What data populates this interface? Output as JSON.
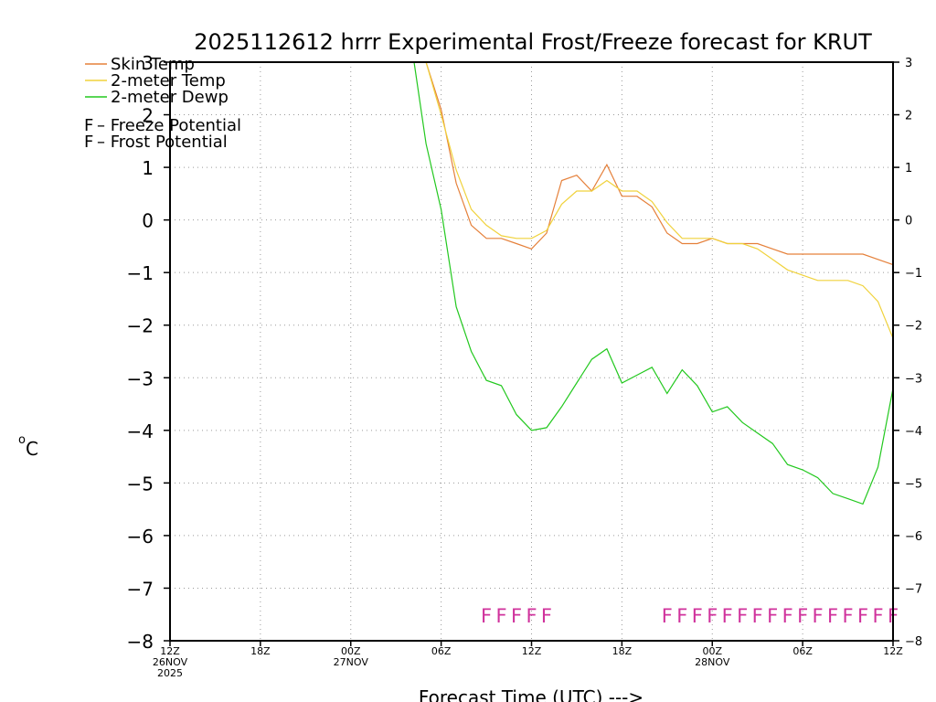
{
  "chart_data": {
    "type": "line",
    "title": "2025112612 hrrr Experimental Frost/Freeze forecast for KRUT",
    "xlabel": "Forecast Time (UTC) --->",
    "ylabel_degree": "o",
    "ylabel_unit": "C",
    "ylim": [
      -8,
      3
    ],
    "yticks": [
      3,
      2,
      1,
      0,
      -1,
      -2,
      -3,
      -4,
      -5,
      -6,
      -7,
      -8
    ],
    "ytick_labels": [
      "3",
      "2",
      "1",
      "0",
      "−1",
      "−2",
      "−3",
      "−4",
      "−5",
      "−6",
      "−7",
      "−8"
    ],
    "xlim": [
      0,
      48
    ],
    "xtick_hours": [
      0,
      6,
      12,
      18,
      24,
      30,
      36,
      42,
      48
    ],
    "xtick_labels": [
      [
        "12Z",
        "26NOV",
        "2025"
      ],
      [
        "18Z"
      ],
      [
        "00Z",
        "27NOV"
      ],
      [
        "06Z"
      ],
      [
        "12Z"
      ],
      [
        "18Z"
      ],
      [
        "00Z",
        "28NOV"
      ],
      [
        "06Z"
      ],
      [
        "12Z"
      ]
    ],
    "grid": true,
    "series": [
      {
        "name": "Skin Temp",
        "color": "#e5803a",
        "x": [
          17,
          18,
          19,
          20,
          21,
          22,
          23,
          24,
          25,
          26,
          27,
          28,
          29,
          30,
          31,
          32,
          33,
          34,
          35,
          36,
          37,
          38,
          39,
          40,
          41,
          42,
          43,
          44,
          45,
          46,
          47,
          48
        ],
        "y": [
          3.0,
          2.1,
          0.7,
          -0.1,
          -0.35,
          -0.35,
          -0.45,
          -0.55,
          -0.25,
          0.75,
          0.85,
          0.55,
          1.05,
          0.45,
          0.45,
          0.25,
          -0.25,
          -0.45,
          -0.45,
          -0.35,
          -0.45,
          -0.45,
          -0.45,
          -0.55,
          -0.65,
          -0.65,
          -0.65,
          -0.65,
          -0.65,
          -0.65,
          -0.75,
          -0.85
        ]
      },
      {
        "name": "2-meter Temp",
        "color": "#f0d23c",
        "x": [
          17,
          18,
          19,
          20,
          21,
          22,
          23,
          24,
          25,
          26,
          27,
          28,
          29,
          30,
          31,
          32,
          33,
          34,
          35,
          36,
          37,
          38,
          39,
          40,
          41,
          42,
          43,
          44,
          45,
          46,
          47,
          48
        ],
        "y": [
          3.0,
          2.0,
          0.95,
          0.2,
          -0.1,
          -0.3,
          -0.35,
          -0.35,
          -0.2,
          0.3,
          0.55,
          0.55,
          0.75,
          0.55,
          0.55,
          0.35,
          -0.05,
          -0.35,
          -0.35,
          -0.35,
          -0.45,
          -0.45,
          -0.55,
          -0.75,
          -0.95,
          -1.05,
          -1.15,
          -1.15,
          -1.15,
          -1.25,
          -1.55,
          -2.25
        ]
      },
      {
        "name": "2-meter Dewp",
        "color": "#22c81e",
        "x": [
          16.2,
          17,
          18,
          19,
          20,
          21,
          22,
          23,
          24,
          25,
          26,
          27,
          28,
          29,
          30,
          31,
          32,
          33,
          34,
          35,
          36,
          37,
          38,
          39,
          40,
          41,
          42,
          43,
          44,
          45,
          46,
          47,
          48
        ],
        "y": [
          3.0,
          1.45,
          0.2,
          -1.65,
          -2.5,
          -3.05,
          -3.15,
          -3.7,
          -4.0,
          -3.95,
          -3.55,
          -3.1,
          -2.65,
          -2.45,
          -3.1,
          -2.95,
          -2.8,
          -3.3,
          -2.85,
          -3.15,
          -3.65,
          -3.55,
          -3.85,
          -4.05,
          -4.25,
          -4.65,
          -4.75,
          -4.9,
          -5.2,
          -5.3,
          -5.4,
          -4.7,
          -3.2
        ]
      }
    ],
    "legend": [
      {
        "label": "Skin Temp",
        "color": "#e5803a"
      },
      {
        "label": "2-meter Temp",
        "color": "#f0d23c"
      },
      {
        "label": "2-meter Dewp",
        "color": "#22c81e"
      }
    ],
    "potential_legend": [
      {
        "symbol": "F",
        "label": " – Freeze Potential",
        "color": "#d0329c"
      },
      {
        "symbol": "F",
        "label": " – Frost Potential",
        "color": "#3c50dc"
      }
    ],
    "freeze_flags": {
      "symbol": "F",
      "color": "#d0329c",
      "hours": [
        21,
        22,
        23,
        24,
        25,
        33,
        34,
        35,
        36,
        37,
        38,
        39,
        40,
        41,
        42,
        43,
        44,
        45,
        46,
        47,
        48
      ]
    }
  }
}
